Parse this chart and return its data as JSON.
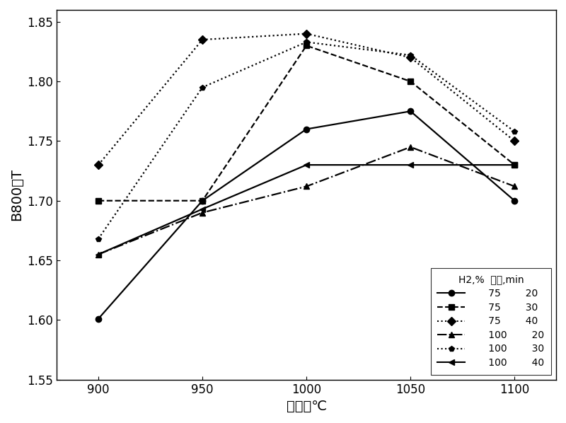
{
  "x": [
    900,
    950,
    1000,
    1050,
    1100
  ],
  "series": [
    {
      "h2": "75",
      "time": "20",
      "y": [
        1.601,
        1.7,
        1.76,
        1.775,
        1.7
      ],
      "linestyle": "-",
      "marker": "o",
      "markersize": 6
    },
    {
      "h2": "75",
      "time": "30",
      "y": [
        1.7,
        1.7,
        1.83,
        1.8,
        1.73
      ],
      "linestyle": "--",
      "marker": "s",
      "markersize": 6
    },
    {
      "h2": "75",
      "time": "40",
      "y": [
        1.73,
        1.835,
        1.84,
        1.82,
        1.75
      ],
      "linestyle": ":",
      "marker": "D",
      "markersize": 6
    },
    {
      "h2": "100",
      "time": "20",
      "y": [
        1.655,
        1.69,
        1.712,
        1.745,
        1.712
      ],
      "linestyle": "-.",
      "marker": "^",
      "markersize": 6
    },
    {
      "h2": "100",
      "time": "30",
      "y": [
        1.668,
        1.795,
        1.833,
        1.822,
        1.758
      ],
      "linestyle": ":",
      "marker": "p",
      "markersize": 6
    },
    {
      "h2": "100",
      "time": "40",
      "y": [
        1.655,
        1.693,
        1.73,
        1.73,
        1.73
      ],
      "linestyle": "-",
      "marker": "<",
      "markersize": 6
    }
  ],
  "xlabel": "炉温，℃",
  "ylabel": "B800，T",
  "xlim": [
    880,
    1120
  ],
  "ylim": [
    1.55,
    1.86
  ],
  "yticks": [
    1.55,
    1.6,
    1.65,
    1.7,
    1.75,
    1.8,
    1.85
  ],
  "xticks": [
    900,
    950,
    1000,
    1050,
    1100
  ],
  "legend_title": "H2,%  时间，min",
  "background_color": "#ffffff",
  "axis_fontsize": 14
}
